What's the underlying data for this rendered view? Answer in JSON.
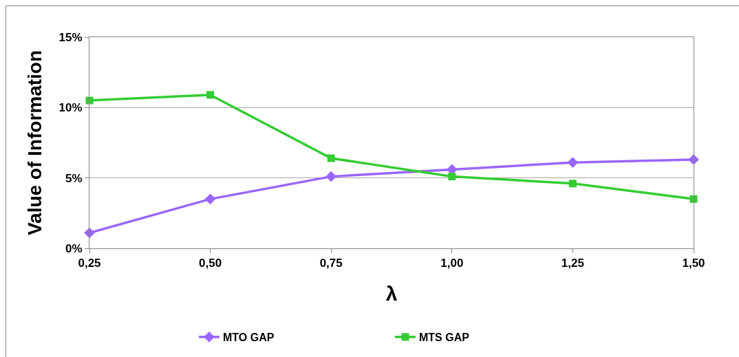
{
  "chart_data": {
    "type": "line",
    "xlabel": "λ",
    "ylabel": "Value of Information",
    "categories": [
      "0,25",
      "0,50",
      "0,75",
      "1,00",
      "1,25",
      "1,50"
    ],
    "series": [
      {
        "name": "MTO GAP",
        "color": "#9966ff",
        "marker": "diamond",
        "values": [
          1.1,
          3.5,
          5.1,
          5.6,
          6.1,
          6.3
        ]
      },
      {
        "name": "MTS GAP",
        "color": "#33cc33",
        "marker": "square",
        "values": [
          10.5,
          10.9,
          6.4,
          5.1,
          4.6,
          3.5
        ]
      }
    ],
    "ylim": [
      0,
      15
    ],
    "yticks": [
      {
        "value": 0,
        "label": "0%"
      },
      {
        "value": 5,
        "label": "5%"
      },
      {
        "value": 10,
        "label": "10%"
      },
      {
        "value": 15,
        "label": "15%"
      }
    ],
    "grid": "y",
    "legend": "bottom",
    "line_style": "solid"
  }
}
